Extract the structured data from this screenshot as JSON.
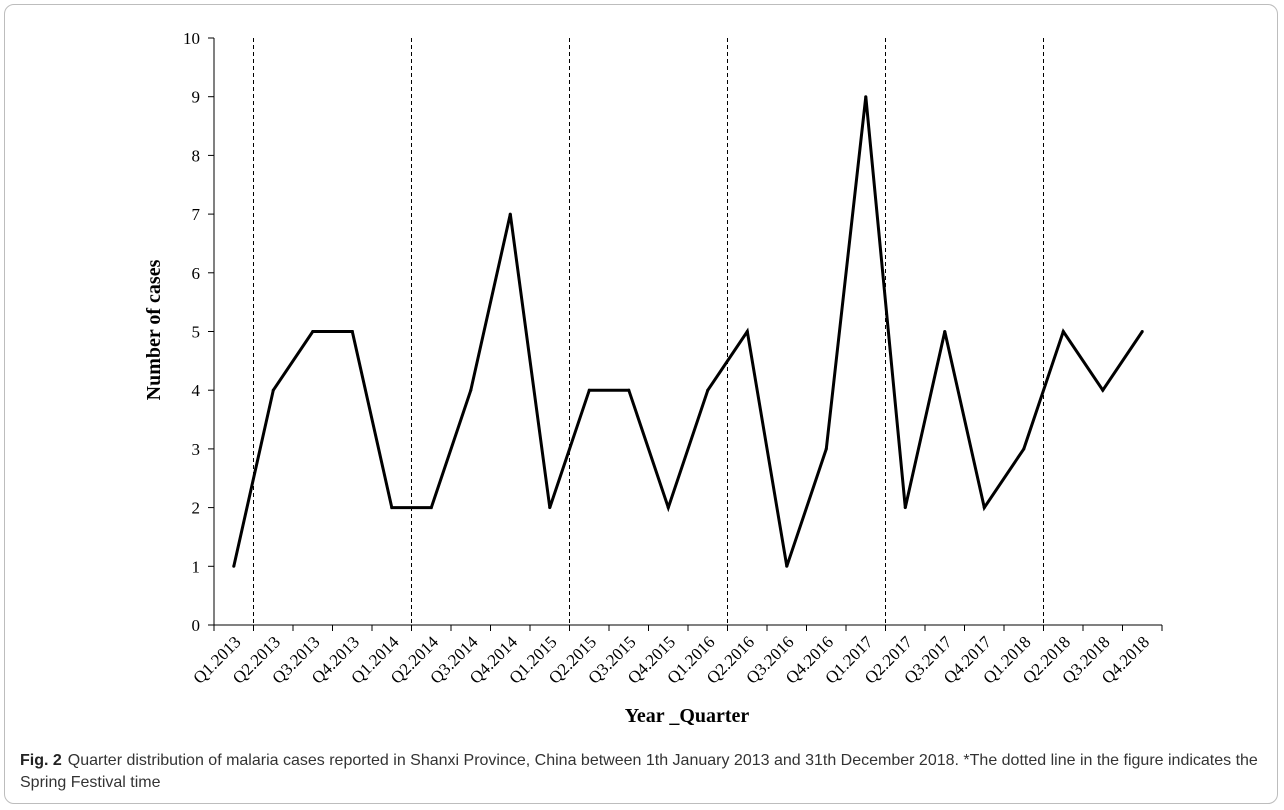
{
  "chart_data": {
    "type": "line",
    "title": "",
    "xlabel": "Year _Quarter",
    "ylabel": "Number of cases",
    "ylim": [
      0,
      10
    ],
    "yticks": [
      0,
      1,
      2,
      3,
      4,
      5,
      6,
      7,
      8,
      9,
      10
    ],
    "categories": [
      "Q1.2013",
      "Q2.2013",
      "Q3.2013",
      "Q4.2013",
      "Q1.2014",
      "Q2.2014",
      "Q3.2014",
      "Q4.2014",
      "Q1.2015",
      "Q2.2015",
      "Q3.2015",
      "Q4.2015",
      "Q1.2016",
      "Q2.2016",
      "Q3.2016",
      "Q4.2016",
      "Q1.2017",
      "Q2.2017",
      "Q3.2017",
      "Q4.2017",
      "Q1.2018",
      "Q2.2018",
      "Q3.2018",
      "Q4.2018"
    ],
    "series": [
      {
        "values": [
          1,
          4,
          5,
          5,
          2,
          2,
          4,
          7,
          2,
          4,
          4,
          2,
          4,
          5,
          1,
          3,
          9,
          2,
          5,
          2,
          3,
          5,
          4,
          5
        ]
      }
    ],
    "spring_festival_markers": [
      "Q1.2013/Q2.2013",
      "Q1.2014/Q2.2014",
      "Q1.2015/Q2.2015",
      "Q1.2016/Q2.2016",
      "Q1.2017/Q2.2017",
      "Q1.2018/Q2.2018"
    ],
    "grid": false,
    "line_color": "#000000"
  },
  "caption": {
    "label": "Fig. 2",
    "text": "Quarter distribution of malaria cases reported in Shanxi Province, China between 1th January 2013 and 31th December 2018. *The dotted line in the figure indicates the Spring Festival time"
  }
}
